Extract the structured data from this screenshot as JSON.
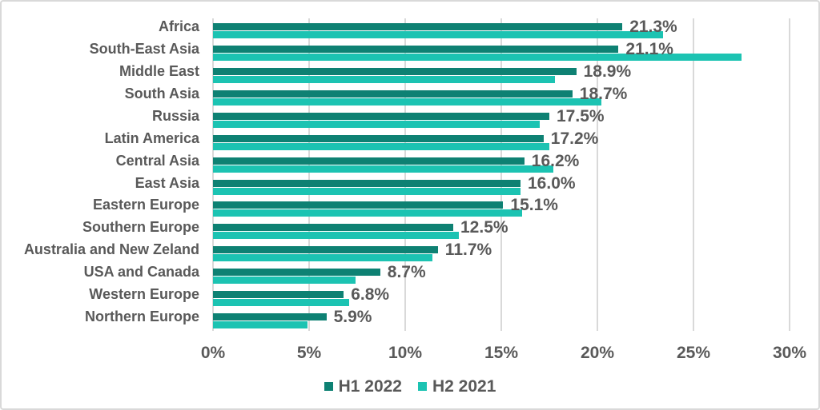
{
  "chart_data": {
    "type": "bar",
    "orientation": "horizontal",
    "title": "",
    "categories": [
      "Africa",
      "South-East Asia",
      "Middle East",
      "South Asia",
      "Russia",
      "Latin America",
      "Central Asia",
      "East Asia",
      "Eastern Europe",
      "Southern Europe",
      "Australia and New Zeland",
      "USA and Canada",
      "Western Europe",
      "Northern Europe"
    ],
    "series": [
      {
        "name": "H1 2022",
        "color": "#0E8173",
        "values": [
          21.3,
          21.1,
          18.9,
          18.7,
          17.5,
          17.2,
          16.2,
          16.0,
          15.1,
          12.5,
          11.7,
          8.7,
          6.8,
          5.9
        ],
        "data_labels": [
          "21.3%",
          "21.1%",
          "18.9%",
          "18.7%",
          "17.5%",
          "17.2%",
          "16.2%",
          "16.0%",
          "15.1%",
          "12.5%",
          "11.7%",
          "8.7%",
          "6.8%",
          "5.9%"
        ]
      },
      {
        "name": "H2 2021",
        "color": "#1CC3B2",
        "values": [
          23.4,
          27.5,
          17.8,
          20.2,
          17.0,
          17.5,
          17.7,
          16.0,
          16.1,
          12.8,
          11.4,
          7.4,
          7.1,
          4.9
        ],
        "data_labels": []
      }
    ],
    "xlabel": "",
    "ylabel": "",
    "axis": {
      "min": 0,
      "max": 30,
      "tick_step": 5,
      "tick_labels": [
        "0%",
        "5%",
        "10%",
        "15%",
        "20%",
        "25%",
        "30%"
      ]
    },
    "grid": "vertical",
    "legend_position": "bottom",
    "colors": {
      "text": "#595959",
      "gridline": "#D9D9D9",
      "background": "#FFFFFF",
      "border": "#D9D9D9"
    }
  }
}
